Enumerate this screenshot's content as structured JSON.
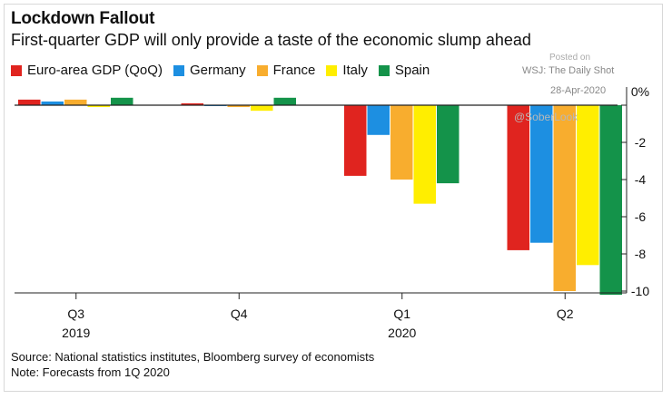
{
  "chart_data": {
    "type": "bar",
    "title": "Lockdown Fallout",
    "subtitle": "First-quarter GDP will only provide a taste of the economic slump ahead",
    "categories": [
      "Q3",
      "Q4",
      "Q1",
      "Q2"
    ],
    "category_years": [
      "2019",
      "",
      "2020",
      ""
    ],
    "series": [
      {
        "name": "Euro-area GDP (QoQ)",
        "color": "#e0241f",
        "values": [
          0.3,
          0.1,
          -3.8,
          -7.8
        ]
      },
      {
        "name": "Germany",
        "color": "#1d8fe1",
        "values": [
          0.2,
          0.0,
          -1.6,
          -7.4
        ]
      },
      {
        "name": "France",
        "color": "#f8ad2e",
        "values": [
          0.3,
          -0.1,
          -4.0,
          -10.0
        ]
      },
      {
        "name": "Italy",
        "color": "#ffee00",
        "values": [
          -0.1,
          -0.3,
          -5.3,
          -8.6
        ]
      },
      {
        "name": "Spain",
        "color": "#14934a",
        "values": [
          0.4,
          0.4,
          -4.2,
          -10.2
        ]
      }
    ],
    "y_ticks": [
      0,
      -2,
      -4,
      -6,
      -8,
      -10
    ],
    "y_tick_labels": [
      "0%",
      "-2",
      "-4",
      "-6",
      "-8",
      "-10"
    ],
    "ylim": [
      -10.5,
      0.6
    ],
    "y_axis_position": "right",
    "grid": false,
    "legend_position": "top-left",
    "source": "Source: National statistics institutes, Bloomberg survey of economists",
    "note": "Note: Forecasts from 1Q 2020"
  },
  "credits": {
    "posted_on": "Posted on",
    "wsj": "WSJ: The Daily Shot",
    "date": "28-Apr-2020",
    "handle": "@SoberLook"
  }
}
